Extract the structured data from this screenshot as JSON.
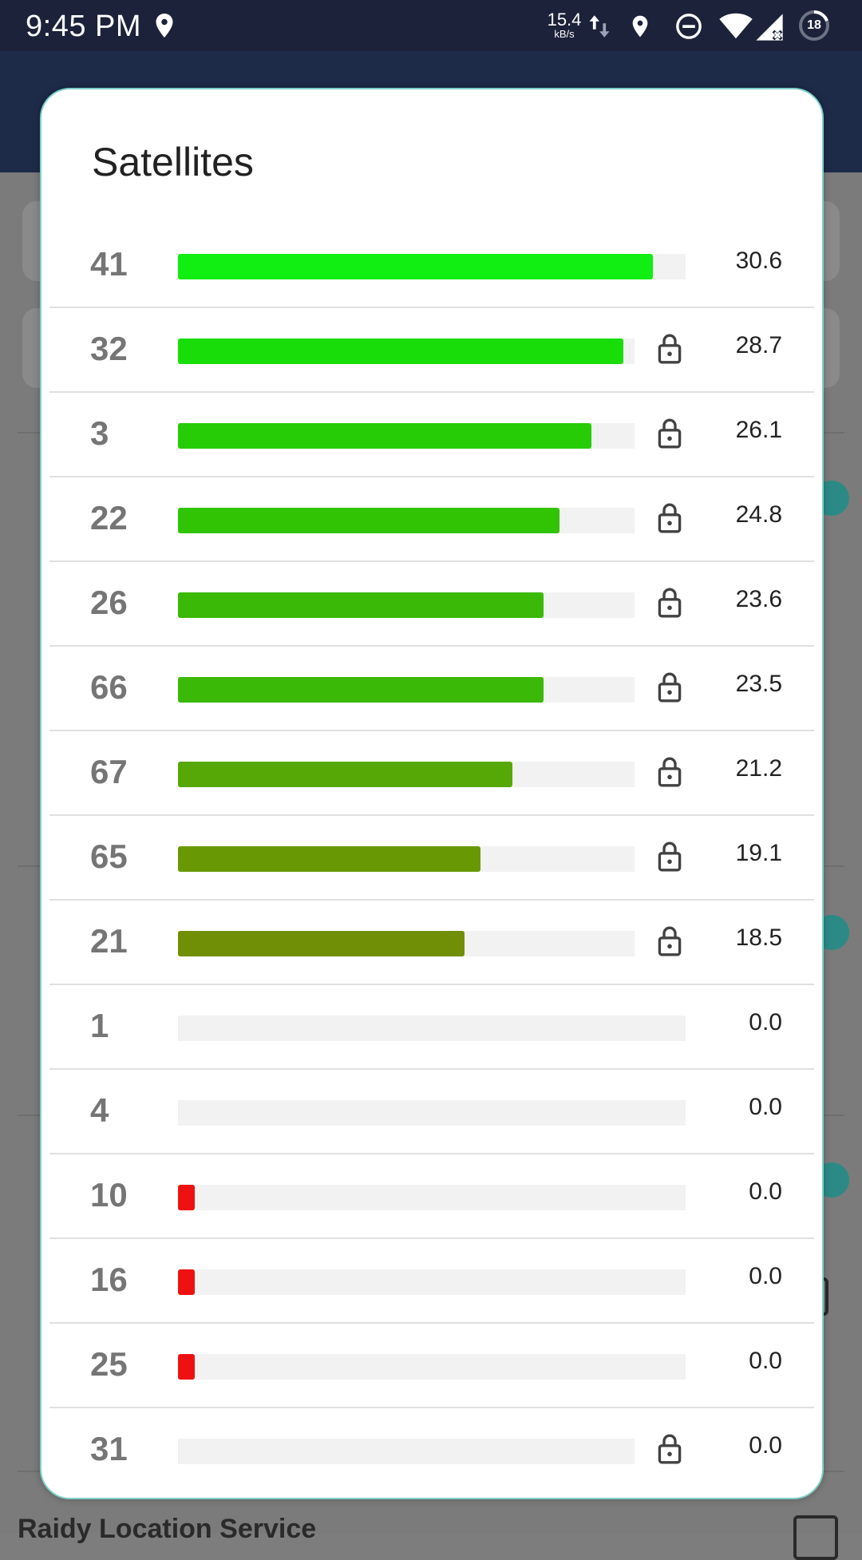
{
  "status_bar": {
    "time": "9:45 PM",
    "net_speed": "15.4",
    "net_unit": "kB/s",
    "battery": "18",
    "icons": [
      "location-icon",
      "data-arrows-icon",
      "location-icon",
      "do-not-disturb-icon",
      "wifi-icon",
      "cell-signal-icon",
      "battery-icon"
    ]
  },
  "dialog": {
    "title": "Satellites",
    "rows": [
      {
        "id": "41",
        "level": 0.936,
        "color": "#11ee11",
        "locked": false,
        "value": "30.6"
      },
      {
        "id": "32",
        "level": 0.877,
        "color": "#19dd08",
        "locked": true,
        "value": "28.7"
      },
      {
        "id": "3",
        "level": 0.814,
        "color": "#26cc05",
        "locked": true,
        "value": "26.1"
      },
      {
        "id": "22",
        "level": 0.751,
        "color": "#30c405",
        "locked": true,
        "value": "24.8"
      },
      {
        "id": "26",
        "level": 0.72,
        "color": "#3ab906",
        "locked": true,
        "value": "23.6"
      },
      {
        "id": "66",
        "level": 0.72,
        "color": "#3ab906",
        "locked": true,
        "value": "23.5"
      },
      {
        "id": "67",
        "level": 0.659,
        "color": "#55a805",
        "locked": true,
        "value": "21.2"
      },
      {
        "id": "65",
        "level": 0.596,
        "color": "#689904",
        "locked": true,
        "value": "19.1"
      },
      {
        "id": "21",
        "level": 0.565,
        "color": "#708f06",
        "locked": true,
        "value": "18.5"
      },
      {
        "id": "1",
        "level": 0.0,
        "color": "#ee1111",
        "locked": false,
        "value": "0.0"
      },
      {
        "id": "4",
        "level": 0.0,
        "color": "#ee1111",
        "locked": false,
        "value": "0.0"
      },
      {
        "id": "10",
        "level": 0.033,
        "color": "#ee1111",
        "locked": false,
        "value": "0.0"
      },
      {
        "id": "16",
        "level": 0.033,
        "color": "#ee1111",
        "locked": false,
        "value": "0.0"
      },
      {
        "id": "25",
        "level": 0.033,
        "color": "#ee1111",
        "locked": false,
        "value": "0.0"
      },
      {
        "id": "31",
        "level": 0.0,
        "color": "#ee1111",
        "locked": true,
        "value": "0.0"
      }
    ]
  },
  "background": {
    "bottom_title": "Raidy Location Service"
  }
}
